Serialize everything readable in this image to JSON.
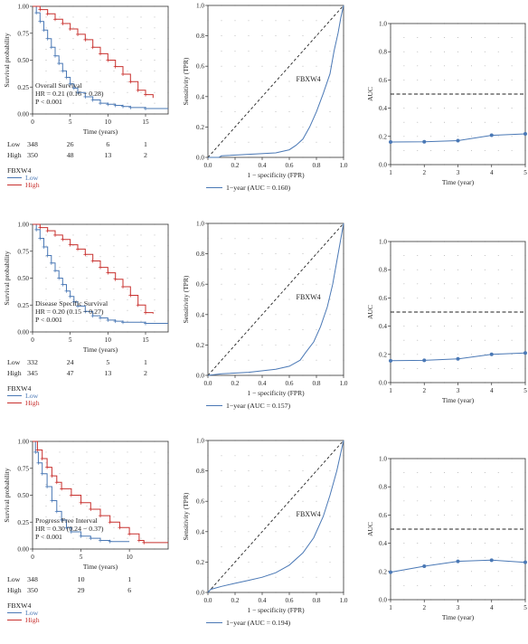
{
  "colors": {
    "low": "#4a78b5",
    "high": "#c8302e",
    "axis": "#333333",
    "grid": "#999999"
  },
  "chart_data": [
    {
      "type": "line",
      "kind": "km",
      "ylabel": "Survival probability",
      "xlabel": "Time (years)",
      "xlim": [
        0,
        18
      ],
      "ylim": [
        0,
        1
      ],
      "xticks": [
        "0",
        "5",
        "10",
        "15"
      ],
      "yticks": [
        "0.00",
        "0.25",
        "0.50",
        "0.75",
        "1.00"
      ],
      "annotation": [
        "Overall Survival",
        "HR = 0.21 (0.16 − 0.28)",
        "P < 0.001"
      ],
      "series": [
        {
          "name": "Low",
          "points": [
            [
              0,
              1
            ],
            [
              0.5,
              0.94
            ],
            [
              1,
              0.86
            ],
            [
              1.5,
              0.78
            ],
            [
              2,
              0.7
            ],
            [
              2.5,
              0.62
            ],
            [
              3,
              0.54
            ],
            [
              3.5,
              0.47
            ],
            [
              4,
              0.4
            ],
            [
              4.5,
              0.34
            ],
            [
              5,
              0.28
            ],
            [
              5.5,
              0.24
            ],
            [
              6,
              0.2
            ],
            [
              7,
              0.16
            ],
            [
              8,
              0.13
            ],
            [
              9,
              0.1
            ],
            [
              10,
              0.09
            ],
            [
              11,
              0.08
            ],
            [
              12,
              0.07
            ],
            [
              13,
              0.06
            ],
            [
              15,
              0.05
            ],
            [
              18,
              0.05
            ]
          ]
        },
        {
          "name": "High",
          "points": [
            [
              0,
              1
            ],
            [
              1,
              0.97
            ],
            [
              2,
              0.93
            ],
            [
              3,
              0.88
            ],
            [
              4,
              0.84
            ],
            [
              5,
              0.79
            ],
            [
              6,
              0.74
            ],
            [
              7,
              0.69
            ],
            [
              8,
              0.62
            ],
            [
              9,
              0.56
            ],
            [
              10,
              0.5
            ],
            [
              11,
              0.44
            ],
            [
              12,
              0.37
            ],
            [
              13,
              0.3
            ],
            [
              14,
              0.22
            ],
            [
              15,
              0.18
            ],
            [
              16,
              0.15
            ]
          ]
        }
      ],
      "risk_table": {
        "rows": [
          {
            "label": "Low",
            "values": [
              "348",
              "26",
              "6",
              "1"
            ]
          },
          {
            "label": "High",
            "values": [
              "350",
              "48",
              "13",
              "2"
            ]
          }
        ]
      },
      "legend": {
        "title": "FBXW4",
        "items": [
          "Low",
          "High"
        ]
      }
    },
    {
      "type": "line",
      "kind": "roc",
      "ylabel": "Sensitivity (TPR)",
      "xlabel": "1 − specificity (FPR)",
      "xlim": [
        0,
        1
      ],
      "ylim": [
        0,
        1
      ],
      "xticks": [
        "0.0",
        "0.2",
        "0.4",
        "0.6",
        "0.8",
        "1.0"
      ],
      "yticks": [
        "0.0",
        "0.2",
        "0.4",
        "0.6",
        "0.8",
        "1.0"
      ],
      "label": "FBXW4",
      "points": [
        [
          0,
          0
        ],
        [
          0.08,
          0
        ],
        [
          0.1,
          0.01
        ],
        [
          0.3,
          0.02
        ],
        [
          0.5,
          0.03
        ],
        [
          0.6,
          0.05
        ],
        [
          0.65,
          0.08
        ],
        [
          0.7,
          0.12
        ],
        [
          0.75,
          0.2
        ],
        [
          0.8,
          0.3
        ],
        [
          0.85,
          0.42
        ],
        [
          0.9,
          0.55
        ],
        [
          0.93,
          0.7
        ],
        [
          0.96,
          0.82
        ],
        [
          0.98,
          0.92
        ],
        [
          1,
          1
        ]
      ],
      "legend": "1−year (AUC = 0.160)"
    },
    {
      "type": "line",
      "kind": "auc",
      "ylabel": "AUC",
      "xlabel": "Time (year)",
      "xlim": [
        1,
        5
      ],
      "ylim": [
        0,
        1
      ],
      "xticks": [
        "1",
        "2",
        "3",
        "4",
        "5"
      ],
      "yticks": [
        "0.0",
        "0.2",
        "0.4",
        "0.6",
        "0.8",
        "1.0"
      ],
      "x": [
        1,
        2,
        3,
        4,
        5
      ],
      "values": [
        0.16,
        0.162,
        0.17,
        0.208,
        0.218
      ],
      "ref": 0.5
    },
    {
      "type": "line",
      "kind": "km",
      "ylabel": "Survival probability",
      "xlabel": "Time (years)",
      "xlim": [
        0,
        18
      ],
      "ylim": [
        0,
        1
      ],
      "xticks": [
        "0",
        "5",
        "10",
        "15"
      ],
      "yticks": [
        "0.00",
        "0.25",
        "0.50",
        "0.75",
        "1.00"
      ],
      "annotation": [
        "Disease Specific Survival",
        "HR = 0.20 (0.15 − 0.27)",
        "P < 0.001"
      ],
      "series": [
        {
          "name": "Low",
          "points": [
            [
              0,
              1
            ],
            [
              0.5,
              0.95
            ],
            [
              1,
              0.87
            ],
            [
              1.5,
              0.79
            ],
            [
              2,
              0.71
            ],
            [
              2.5,
              0.64
            ],
            [
              3,
              0.57
            ],
            [
              3.5,
              0.5
            ],
            [
              4,
              0.44
            ],
            [
              4.5,
              0.38
            ],
            [
              5,
              0.33
            ],
            [
              5.5,
              0.28
            ],
            [
              6,
              0.24
            ],
            [
              7,
              0.19
            ],
            [
              8,
              0.15
            ],
            [
              9,
              0.13
            ],
            [
              10,
              0.11
            ],
            [
              11,
              0.1
            ],
            [
              12,
              0.09
            ],
            [
              15,
              0.08
            ],
            [
              18,
              0.08
            ]
          ]
        },
        {
          "name": "High",
          "points": [
            [
              0,
              1
            ],
            [
              1,
              0.97
            ],
            [
              2,
              0.94
            ],
            [
              3,
              0.9
            ],
            [
              4,
              0.86
            ],
            [
              5,
              0.81
            ],
            [
              6,
              0.77
            ],
            [
              7,
              0.72
            ],
            [
              8,
              0.66
            ],
            [
              9,
              0.6
            ],
            [
              10,
              0.55
            ],
            [
              11,
              0.49
            ],
            [
              12,
              0.42
            ],
            [
              13,
              0.34
            ],
            [
              14,
              0.25
            ],
            [
              15,
              0.18
            ],
            [
              16,
              0.17
            ]
          ]
        }
      ],
      "risk_table": {
        "rows": [
          {
            "label": "Low",
            "values": [
              "332",
              "24",
              "5",
              "1"
            ]
          },
          {
            "label": "High",
            "values": [
              "345",
              "47",
              "13",
              "2"
            ]
          }
        ]
      },
      "legend": {
        "title": "FBXW4",
        "items": [
          "Low",
          "High"
        ]
      }
    },
    {
      "type": "line",
      "kind": "roc",
      "ylabel": "Sensitivity (TPR)",
      "xlabel": "1 − specificity (FPR)",
      "xlim": [
        0,
        1
      ],
      "ylim": [
        0,
        1
      ],
      "xticks": [
        "0.0",
        "0.2",
        "0.4",
        "0.6",
        "0.8",
        "1.0"
      ],
      "yticks": [
        "0.0",
        "0.2",
        "0.4",
        "0.6",
        "0.8",
        "1.0"
      ],
      "label": "FBXW4",
      "points": [
        [
          0,
          0
        ],
        [
          0.1,
          0.01
        ],
        [
          0.3,
          0.02
        ],
        [
          0.5,
          0.04
        ],
        [
          0.6,
          0.06
        ],
        [
          0.68,
          0.1
        ],
        [
          0.72,
          0.15
        ],
        [
          0.78,
          0.22
        ],
        [
          0.83,
          0.32
        ],
        [
          0.88,
          0.45
        ],
        [
          0.92,
          0.6
        ],
        [
          0.95,
          0.75
        ],
        [
          0.98,
          0.9
        ],
        [
          1,
          1
        ]
      ],
      "legend": "1−year (AUC = 0.157)"
    },
    {
      "type": "line",
      "kind": "auc",
      "ylabel": "AUC",
      "xlabel": "Time (year)",
      "xlim": [
        1,
        5
      ],
      "ylim": [
        0,
        1
      ],
      "xticks": [
        "1",
        "2",
        "3",
        "4",
        "5"
      ],
      "yticks": [
        "0.0",
        "0.2",
        "0.4",
        "0.6",
        "0.8",
        "1.0"
      ],
      "x": [
        1,
        2,
        3,
        4,
        5
      ],
      "values": [
        0.155,
        0.158,
        0.168,
        0.2,
        0.21
      ],
      "ref": 0.5
    },
    {
      "type": "line",
      "kind": "km",
      "ylabel": "Survival probability",
      "xlabel": "Time (years)",
      "xlim": [
        0,
        14
      ],
      "ylim": [
        0,
        1
      ],
      "xticks": [
        "0",
        "5",
        "10"
      ],
      "yticks": [
        "0.00",
        "0.25",
        "0.50",
        "0.75",
        "1.00"
      ],
      "annotation": [
        "Progress Free Interval",
        "HR = 0.30 (0.24 − 0.37)",
        "P < 0.001"
      ],
      "series": [
        {
          "name": "Low",
          "points": [
            [
              0,
              1
            ],
            [
              0.3,
              0.9
            ],
            [
              0.6,
              0.8
            ],
            [
              1,
              0.7
            ],
            [
              1.5,
              0.58
            ],
            [
              2,
              0.45
            ],
            [
              2.5,
              0.35
            ],
            [
              3,
              0.27
            ],
            [
              3.5,
              0.2
            ],
            [
              4,
              0.16
            ],
            [
              5,
              0.12
            ],
            [
              6,
              0.1
            ],
            [
              7,
              0.08
            ],
            [
              8,
              0.07
            ],
            [
              10,
              0.07
            ]
          ]
        },
        {
          "name": "High",
          "points": [
            [
              0,
              1
            ],
            [
              0.5,
              0.92
            ],
            [
              1,
              0.84
            ],
            [
              1.5,
              0.76
            ],
            [
              2,
              0.68
            ],
            [
              2.5,
              0.62
            ],
            [
              3,
              0.56
            ],
            [
              4,
              0.5
            ],
            [
              5,
              0.43
            ],
            [
              6,
              0.37
            ],
            [
              7,
              0.31
            ],
            [
              8,
              0.25
            ],
            [
              9,
              0.2
            ],
            [
              10,
              0.14
            ],
            [
              11,
              0.08
            ],
            [
              11.5,
              0.06
            ],
            [
              14,
              0.06
            ]
          ]
        }
      ],
      "risk_table": {
        "rows": [
          {
            "label": "Low",
            "values": [
              "348",
              "10",
              "1"
            ]
          },
          {
            "label": "High",
            "values": [
              "350",
              "29",
              "6"
            ]
          }
        ]
      },
      "legend": {
        "title": "FBXW4",
        "items": [
          "Low",
          "High"
        ]
      }
    },
    {
      "type": "line",
      "kind": "roc",
      "ylabel": "Sensitivity (TPR)",
      "xlabel": "1 − specificity (FPR)",
      "xlim": [
        0,
        1
      ],
      "ylim": [
        0,
        1
      ],
      "xticks": [
        "0.0",
        "0.2",
        "0.4",
        "0.6",
        "0.8",
        "1.0"
      ],
      "yticks": [
        "0.0",
        "0.2",
        "0.4",
        "0.6",
        "0.8",
        "1.0"
      ],
      "label": "FBXW4",
      "points": [
        [
          0,
          0
        ],
        [
          0.02,
          0.02
        ],
        [
          0.1,
          0.04
        ],
        [
          0.2,
          0.06
        ],
        [
          0.3,
          0.08
        ],
        [
          0.4,
          0.1
        ],
        [
          0.5,
          0.13
        ],
        [
          0.6,
          0.18
        ],
        [
          0.7,
          0.26
        ],
        [
          0.78,
          0.36
        ],
        [
          0.85,
          0.5
        ],
        [
          0.9,
          0.64
        ],
        [
          0.95,
          0.8
        ],
        [
          0.98,
          0.92
        ],
        [
          1,
          1
        ]
      ],
      "legend": "1−year (AUC = 0.194)"
    },
    {
      "type": "line",
      "kind": "auc",
      "ylabel": "AUC",
      "xlabel": "Time (year)",
      "xlim": [
        1,
        5
      ],
      "ylim": [
        0,
        1
      ],
      "xticks": [
        "1",
        "2",
        "3",
        "4",
        "5"
      ],
      "yticks": [
        "0.0",
        "0.2",
        "0.4",
        "0.6",
        "0.8",
        "1.0"
      ],
      "x": [
        1,
        2,
        3,
        4,
        5
      ],
      "values": [
        0.195,
        0.237,
        0.272,
        0.28,
        0.265
      ],
      "ref": 0.5
    }
  ]
}
